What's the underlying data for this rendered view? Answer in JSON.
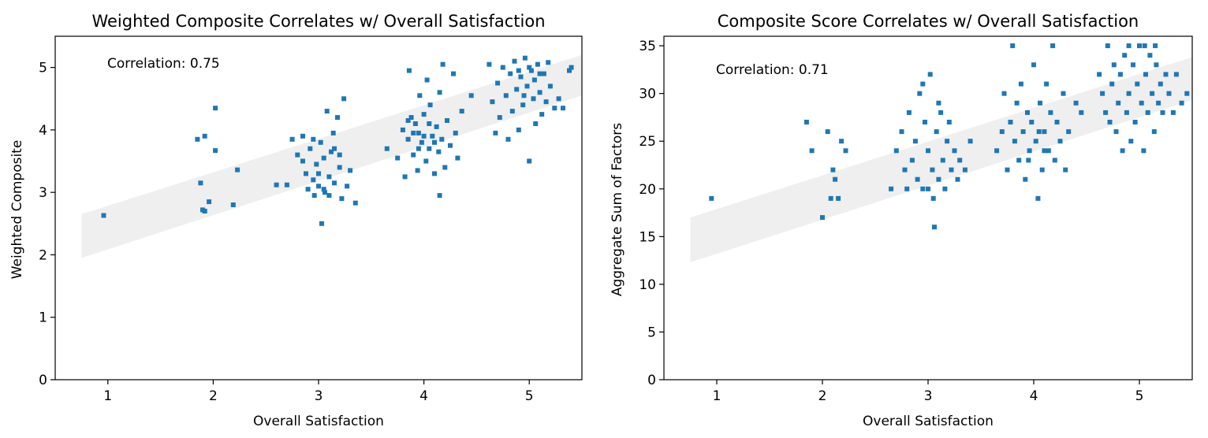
{
  "chart_data": [
    {
      "type": "scatter",
      "title": "Weighted Composite Correlates w/ Overall Satisfaction",
      "xlabel": "Overall Satisfaction",
      "ylabel": "Weighted Composite",
      "xlim": [
        0.5,
        5.5
      ],
      "ylim": [
        0,
        5.5
      ],
      "xticks": [
        1,
        2,
        3,
        4,
        5
      ],
      "yticks": [
        0,
        1,
        2,
        3,
        4,
        5
      ],
      "annotation": "Correlation: 0.75",
      "band": {
        "x": [
          0.75,
          5.5
        ],
        "y_low": [
          1.95,
          4.55
        ],
        "y_high": [
          2.65,
          5.2
        ]
      },
      "colors": {
        "points": "#1f77b4",
        "band": "#efefef"
      },
      "series": [
        {
          "points": [
            [
              0.96,
              2.63
            ],
            [
              1.85,
              3.85
            ],
            [
              1.92,
              3.9
            ],
            [
              1.96,
              2.85
            ],
            [
              1.88,
              3.15
            ],
            [
              1.9,
              2.72
            ],
            [
              1.92,
              2.7
            ],
            [
              2.02,
              4.35
            ],
            [
              2.02,
              3.67
            ],
            [
              2.19,
              2.8
            ],
            [
              2.23,
              3.36
            ],
            [
              2.7,
              3.12
            ],
            [
              2.75,
              3.85
            ],
            [
              2.8,
              3.6
            ],
            [
              2.85,
              3.9
            ],
            [
              2.88,
              3.3
            ],
            [
              2.9,
              3.05
            ],
            [
              2.92,
              3.7
            ],
            [
              2.95,
              3.2
            ],
            [
              2.96,
              2.95
            ],
            [
              2.98,
              3.45
            ],
            [
              3.0,
              3.1
            ],
            [
              3.02,
              3.8
            ],
            [
              3.03,
              2.5
            ],
            [
              3.05,
              3.55
            ],
            [
              3.06,
              3.0
            ],
            [
              3.08,
              4.3
            ],
            [
              3.1,
              3.25
            ],
            [
              3.12,
              3.65
            ],
            [
              3.14,
              3.95
            ],
            [
              3.15,
              3.15
            ],
            [
              3.18,
              4.2
            ],
            [
              3.2,
              3.4
            ],
            [
              3.22,
              2.9
            ],
            [
              3.24,
              4.5
            ],
            [
              3.27,
              3.1
            ],
            [
              3.3,
              3.35
            ],
            [
              3.35,
              2.83
            ],
            [
              2.6,
              3.12
            ],
            [
              2.85,
              3.5
            ],
            [
              2.95,
              3.85
            ],
            [
              3.05,
              3.05
            ],
            [
              3.15,
              3.7
            ],
            [
              3.0,
              3.3
            ],
            [
              3.1,
              2.95
            ],
            [
              3.2,
              3.6
            ],
            [
              3.65,
              3.7
            ],
            [
              3.75,
              3.55
            ],
            [
              3.8,
              4.0
            ],
            [
              3.82,
              3.25
            ],
            [
              3.85,
              3.85
            ],
            [
              3.86,
              4.95
            ],
            [
              3.88,
              4.2
            ],
            [
              3.9,
              3.6
            ],
            [
              3.92,
              4.1
            ],
            [
              3.94,
              3.35
            ],
            [
              3.95,
              3.95
            ],
            [
              3.96,
              4.55
            ],
            [
              3.98,
              3.8
            ],
            [
              4.0,
              4.25
            ],
            [
              4.02,
              3.5
            ],
            [
              4.03,
              4.8
            ],
            [
              4.05,
              3.7
            ],
            [
              4.06,
              4.4
            ],
            [
              4.08,
              3.9
            ],
            [
              4.1,
              3.3
            ],
            [
              4.12,
              4.05
            ],
            [
              4.14,
              3.65
            ],
            [
              4.15,
              4.6
            ],
            [
              4.17,
              3.85
            ],
            [
              4.18,
              5.05
            ],
            [
              4.2,
              3.4
            ],
            [
              4.22,
              4.15
            ],
            [
              4.25,
              3.75
            ],
            [
              4.28,
              4.9
            ],
            [
              4.3,
              3.95
            ],
            [
              4.32,
              3.55
            ],
            [
              4.36,
              4.3
            ],
            [
              4.15,
              2.95
            ],
            [
              4.45,
              4.55
            ],
            [
              3.9,
              3.95
            ],
            [
              4.05,
              4.1
            ],
            [
              3.95,
              3.7
            ],
            [
              4.1,
              3.8
            ],
            [
              4.0,
              3.9
            ],
            [
              3.85,
              4.15
            ],
            [
              4.62,
              5.05
            ],
            [
              4.65,
              4.45
            ],
            [
              4.68,
              3.95
            ],
            [
              4.7,
              4.75
            ],
            [
              4.72,
              4.2
            ],
            [
              4.75,
              5.0
            ],
            [
              4.78,
              4.55
            ],
            [
              4.8,
              3.85
            ],
            [
              4.82,
              4.9
            ],
            [
              4.84,
              4.3
            ],
            [
              4.86,
              5.1
            ],
            [
              4.88,
              4.65
            ],
            [
              4.9,
              4.0
            ],
            [
              4.92,
              4.85
            ],
            [
              4.94,
              4.4
            ],
            [
              4.96,
              5.15
            ],
            [
              4.98,
              4.7
            ],
            [
              5.0,
              3.5
            ],
            [
              5.02,
              4.95
            ],
            [
              5.04,
              4.5
            ],
            [
              5.06,
              4.1
            ],
            [
              5.08,
              5.05
            ],
            [
              5.1,
              4.6
            ],
            [
              5.12,
              4.25
            ],
            [
              5.14,
              4.9
            ],
            [
              5.16,
              4.45
            ],
            [
              5.18,
              5.08
            ],
            [
              5.2,
              4.7
            ],
            [
              5.24,
              4.35
            ],
            [
              5.28,
              4.5
            ],
            [
              5.32,
              4.35
            ],
            [
              5.38,
              4.95
            ],
            [
              5.4,
              5.0
            ],
            [
              4.9,
              4.95
            ],
            [
              5.0,
              5.0
            ],
            [
              5.05,
              4.8
            ],
            [
              4.95,
              4.55
            ],
            [
              5.1,
              4.9
            ]
          ]
        }
      ]
    },
    {
      "type": "scatter",
      "title": "Composite Score Correlates w/ Overall Satisfaction",
      "xlabel": "Overall Satisfaction",
      "ylabel": "Aggregate Sum of Factors",
      "xlim": [
        0.5,
        5.5
      ],
      "ylim": [
        0,
        36
      ],
      "xticks": [
        1,
        2,
        3,
        4,
        5
      ],
      "yticks": [
        0,
        5,
        10,
        15,
        20,
        25,
        30,
        35
      ],
      "annotation": "Correlation: 0.71",
      "band": {
        "x": [
          0.75,
          5.5
        ],
        "y_low": [
          12.3,
          29.3
        ],
        "y_high": [
          17.0,
          33.8
        ]
      },
      "colors": {
        "points": "#1f77b4",
        "band": "#efefef"
      },
      "series": [
        {
          "points": [
            [
              0.95,
              19
            ],
            [
              1.85,
              27
            ],
            [
              1.9,
              24
            ],
            [
              2.0,
              17
            ],
            [
              2.05,
              26
            ],
            [
              2.1,
              22
            ],
            [
              2.12,
              21
            ],
            [
              2.15,
              19
            ],
            [
              2.08,
              19
            ],
            [
              2.18,
              25
            ],
            [
              2.22,
              24
            ],
            [
              2.65,
              20
            ],
            [
              2.7,
              24
            ],
            [
              2.75,
              26
            ],
            [
              2.78,
              22
            ],
            [
              2.8,
              20
            ],
            [
              2.82,
              28
            ],
            [
              2.85,
              23
            ],
            [
              2.88,
              25
            ],
            [
              2.9,
              21
            ],
            [
              2.92,
              30
            ],
            [
              2.95,
              20
            ],
            [
              2.97,
              27
            ],
            [
              3.0,
              24
            ],
            [
              3.02,
              32
            ],
            [
              3.04,
              22
            ],
            [
              3.06,
              16
            ],
            [
              3.08,
              26
            ],
            [
              3.1,
              21
            ],
            [
              3.12,
              28
            ],
            [
              3.14,
              23
            ],
            [
              3.16,
              20
            ],
            [
              3.18,
              25
            ],
            [
              3.2,
              27
            ],
            [
              3.22,
              22
            ],
            [
              3.25,
              24
            ],
            [
              3.28,
              21
            ],
            [
              3.3,
              23
            ],
            [
              3.35,
              22
            ],
            [
              3.4,
              25
            ],
            [
              3.05,
              19
            ],
            [
              2.95,
              31
            ],
            [
              3.1,
              29
            ],
            [
              3.0,
              20
            ],
            [
              3.65,
              24
            ],
            [
              3.7,
              26
            ],
            [
              3.72,
              30
            ],
            [
              3.75,
              22
            ],
            [
              3.78,
              27
            ],
            [
              3.8,
              35
            ],
            [
              3.82,
              25
            ],
            [
              3.84,
              29
            ],
            [
              3.86,
              23
            ],
            [
              3.88,
              31
            ],
            [
              3.9,
              26
            ],
            [
              3.92,
              21
            ],
            [
              3.94,
              28
            ],
            [
              3.96,
              24
            ],
            [
              3.98,
              27
            ],
            [
              4.0,
              33
            ],
            [
              4.02,
              25
            ],
            [
              4.04,
              19
            ],
            [
              4.06,
              29
            ],
            [
              4.08,
              22
            ],
            [
              4.1,
              26
            ],
            [
              4.12,
              31
            ],
            [
              4.14,
              24
            ],
            [
              4.16,
              28
            ],
            [
              4.18,
              35
            ],
            [
              4.2,
              23
            ],
            [
              4.22,
              27
            ],
            [
              4.25,
              25
            ],
            [
              4.28,
              30
            ],
            [
              4.3,
              22
            ],
            [
              4.33,
              26
            ],
            [
              4.4,
              29
            ],
            [
              4.45,
              28
            ],
            [
              3.95,
              23
            ],
            [
              4.05,
              26
            ],
            [
              4.1,
              24
            ],
            [
              4.62,
              32
            ],
            [
              4.65,
              30
            ],
            [
              4.68,
              28
            ],
            [
              4.7,
              35
            ],
            [
              4.72,
              27
            ],
            [
              4.74,
              31
            ],
            [
              4.76,
              33
            ],
            [
              4.78,
              26
            ],
            [
              4.8,
              29
            ],
            [
              4.82,
              32
            ],
            [
              4.84,
              24
            ],
            [
              4.86,
              34
            ],
            [
              4.88,
              28
            ],
            [
              4.9,
              30
            ],
            [
              4.92,
              25
            ],
            [
              4.94,
              33
            ],
            [
              4.96,
              27
            ],
            [
              4.98,
              31
            ],
            [
              5.0,
              35
            ],
            [
              5.02,
              29
            ],
            [
              5.04,
              24
            ],
            [
              5.06,
              32
            ],
            [
              5.08,
              28
            ],
            [
              5.1,
              34
            ],
            [
              5.12,
              30
            ],
            [
              5.14,
              26
            ],
            [
              5.16,
              33
            ],
            [
              5.18,
              29
            ],
            [
              5.2,
              31
            ],
            [
              5.22,
              28
            ],
            [
              5.25,
              32
            ],
            [
              5.28,
              30
            ],
            [
              5.32,
              28
            ],
            [
              5.35,
              32
            ],
            [
              5.4,
              29
            ],
            [
              5.45,
              30
            ],
            [
              4.9,
              35
            ],
            [
              5.05,
              35
            ],
            [
              5.15,
              35
            ]
          ]
        }
      ]
    }
  ]
}
